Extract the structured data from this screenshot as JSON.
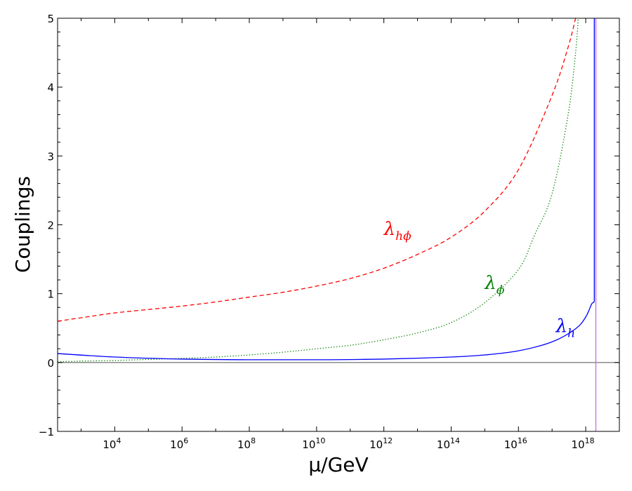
{
  "chart_data": {
    "type": "line",
    "xlabel": "μ/GeV",
    "ylabel": "Couplings",
    "xscale": "log",
    "xlim": [
      200,
      1e+19
    ],
    "ylim": [
      -1,
      5
    ],
    "grid": false,
    "legend": "none",
    "x_tick_labels": [
      {
        "value": 10000.0,
        "base": "10",
        "exp": "4"
      },
      {
        "value": 1000000.0,
        "base": "10",
        "exp": "6"
      },
      {
        "value": 100000000.0,
        "base": "10",
        "exp": "8"
      },
      {
        "value": 10000000000.0,
        "base": "10",
        "exp": "10"
      },
      {
        "value": 1000000000000.0,
        "base": "10",
        "exp": "12"
      },
      {
        "value": 100000000000000.0,
        "base": "10",
        "exp": "14"
      },
      {
        "value": 1e+16,
        "base": "10",
        "exp": "16"
      },
      {
        "value": 1e+18,
        "base": "10",
        "exp": "18"
      }
    ],
    "y_tick_labels": [
      {
        "value": -1,
        "text": "−1"
      },
      {
        "value": 0,
        "text": "0"
      },
      {
        "value": 1,
        "text": "1"
      },
      {
        "value": 2,
        "text": "2"
      },
      {
        "value": 3,
        "text": "3"
      },
      {
        "value": 4,
        "text": "4"
      },
      {
        "value": 5,
        "text": "5"
      }
    ],
    "reference_lines": [
      {
        "orientation": "horizontal",
        "value": 0,
        "color": "#808080"
      },
      {
        "orientation": "vertical",
        "value": 2e+18,
        "color": "#cc66ee"
      }
    ],
    "series": [
      {
        "key": "lam-hphi",
        "label_base": "λ",
        "label_sub": "hϕ",
        "label_at": [
          1000000000000.0,
          1.85
        ],
        "color": "#ff0000",
        "style": "dashed",
        "x": [
          200,
          1000.0,
          10000.0,
          100000.0,
          1000000.0,
          10000000.0,
          100000000.0,
          1000000000.0,
          10000000000.0,
          100000000000.0,
          1000000000000.0,
          10000000000000.0,
          100000000000000.0,
          1000000000000000.0,
          1e+16,
          1e+17,
          3e+17,
          5e+17
        ],
        "y": [
          0.6,
          0.65,
          0.72,
          0.77,
          0.82,
          0.88,
          0.95,
          1.02,
          1.11,
          1.22,
          1.37,
          1.57,
          1.82,
          2.2,
          2.8,
          3.88,
          4.58,
          5.0
        ]
      },
      {
        "key": "lam-phi",
        "label_base": "λ",
        "label_sub": "ϕ",
        "label_at": [
          1000000000000000.0,
          1.07
        ],
        "color": "#007f00",
        "style": "dotted",
        "x": [
          200,
          1000.0,
          10000.0,
          100000.0,
          1000000.0,
          10000000.0,
          100000000.0,
          1000000000.0,
          10000000000.0,
          100000000000.0,
          1000000000000.0,
          10000000000000.0,
          100000000000000.0,
          1000000000000000.0,
          1e+16,
          3e+16,
          1e+17,
          3e+17,
          5e+17,
          6e+17
        ],
        "y": [
          0.01,
          0.02,
          0.03,
          0.045,
          0.06,
          0.08,
          0.11,
          0.15,
          0.2,
          0.25,
          0.33,
          0.43,
          0.58,
          0.87,
          1.35,
          1.85,
          2.45,
          3.6,
          4.5,
          5.0
        ]
      },
      {
        "key": "lam-h",
        "label_base": "λ",
        "label_sub": "h",
        "label_at": [
          1.3e+17,
          0.44
        ],
        "color": "#0000ff",
        "style": "solid",
        "x": [
          200,
          10000.0,
          1000000.0,
          100000000.0,
          10000000000.0,
          1000000000000.0,
          100000000000000.0,
          1000000000000000.0,
          1e+16,
          1e+17,
          5e+17,
          1e+18,
          1.5e+18,
          1.8e+18,
          1.8e+18
        ],
        "y": [
          0.13,
          0.08,
          0.05,
          0.04,
          0.04,
          0.05,
          0.08,
          0.11,
          0.17,
          0.3,
          0.49,
          0.66,
          0.85,
          0.9,
          5.0
        ]
      }
    ]
  }
}
